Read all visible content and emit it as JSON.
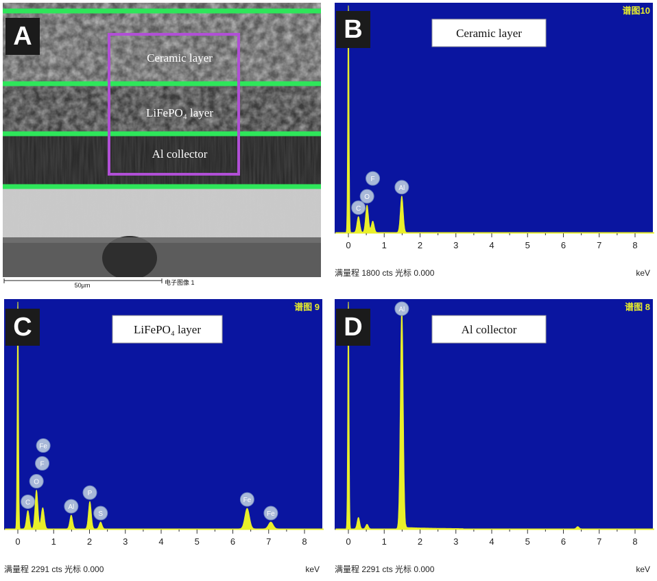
{
  "panels": {
    "A": {
      "letter": "A",
      "labels": [
        "Ceramic layer",
        "LiFePO₄ layer",
        "Al collector"
      ],
      "scalebar": "50μm",
      "caption": "电子图像 1",
      "colors": {
        "layer_line": "#2ee65a",
        "box": "#b14fd6"
      }
    },
    "B": {
      "letter": "B",
      "title": "Ceramic layer",
      "spectrum_id": "谱图10",
      "footer": "满量程 1800 cts 光标 0.000",
      "unit": "keV"
    },
    "C": {
      "letter": "C",
      "title": "LiFePO₄ layer",
      "spectrum_id": "谱图 9",
      "footer": "满量程 2291 cts 光标 0.000",
      "unit": "keV"
    },
    "D": {
      "letter": "D",
      "title": "Al collector",
      "spectrum_id": "谱图 8",
      "footer": "满量程 2291 cts 光标 0.000",
      "unit": "keV"
    }
  },
  "chart_data": [
    {
      "type": "line",
      "panel": "B",
      "title": "Ceramic layer",
      "xlabel": "keV",
      "xlim": [
        -0.4,
        8.6
      ],
      "xticks": [
        0,
        1,
        2,
        3,
        4,
        5,
        6,
        7,
        8
      ],
      "full_scale_cts": 1800,
      "peaks": [
        {
          "element": "C",
          "keV": 0.28,
          "rel": 0.07
        },
        {
          "element": "O",
          "keV": 0.52,
          "rel": 0.12
        },
        {
          "element": "F",
          "keV": 0.68,
          "rel": 0.05
        },
        {
          "element": "Al",
          "keV": 1.49,
          "rel": 0.16
        }
      ],
      "colors": {
        "background": "#0a15a0",
        "trace": "#e9ef2a",
        "label_circle": "#a8b8d8"
      }
    },
    {
      "type": "line",
      "panel": "C",
      "title": "LiFePO₄ layer",
      "xlabel": "keV",
      "xlim": [
        -0.4,
        8.6
      ],
      "xticks": [
        0,
        1,
        2,
        3,
        4,
        5,
        6,
        7,
        8
      ],
      "full_scale_cts": 2291,
      "peaks": [
        {
          "element": "C",
          "keV": 0.28,
          "rel": 0.08
        },
        {
          "element": "O",
          "keV": 0.52,
          "rel": 0.17
        },
        {
          "element": "F",
          "keV": 0.68,
          "rel": 0.05
        },
        {
          "element": "Fe",
          "keV": 0.71,
          "rel": 0.05
        },
        {
          "element": "Al",
          "keV": 1.49,
          "rel": 0.06
        },
        {
          "element": "P",
          "keV": 2.01,
          "rel": 0.12
        },
        {
          "element": "S",
          "keV": 2.31,
          "rel": 0.03
        },
        {
          "element": "Fe",
          "keV": 6.4,
          "rel": 0.09
        },
        {
          "element": "Fe",
          "keV": 7.06,
          "rel": 0.03
        }
      ],
      "colors": {
        "background": "#0a15a0",
        "trace": "#e9ef2a",
        "label_circle": "#a8b8d8"
      }
    },
    {
      "type": "line",
      "panel": "D",
      "title": "Al collector",
      "xlabel": "keV",
      "xlim": [
        -0.4,
        8.6
      ],
      "xticks": [
        0,
        1,
        2,
        3,
        4,
        5,
        6,
        7,
        8
      ],
      "full_scale_cts": 2291,
      "peaks": [
        {
          "element": "Al",
          "keV": 1.49,
          "rel": 0.98
        }
      ],
      "minor_peaks": [
        {
          "keV": 0.28,
          "rel": 0.05
        },
        {
          "keV": 0.52,
          "rel": 0.02
        },
        {
          "keV": 6.4,
          "rel": 0.01
        }
      ],
      "colors": {
        "background": "#0a15a0",
        "trace": "#e9ef2a",
        "label_circle": "#a8b8d8"
      }
    }
  ]
}
